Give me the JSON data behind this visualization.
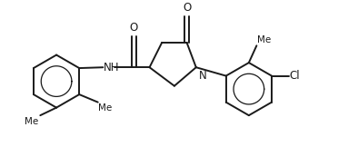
{
  "background_color": "#ffffff",
  "line_color": "#1a1a1a",
  "line_width": 1.4,
  "font_size": 8.5,
  "figsize": [
    3.94,
    1.62
  ],
  "dpi": 100,
  "xlim": [
    0,
    11
  ],
  "ylim": [
    0,
    4.5
  ]
}
